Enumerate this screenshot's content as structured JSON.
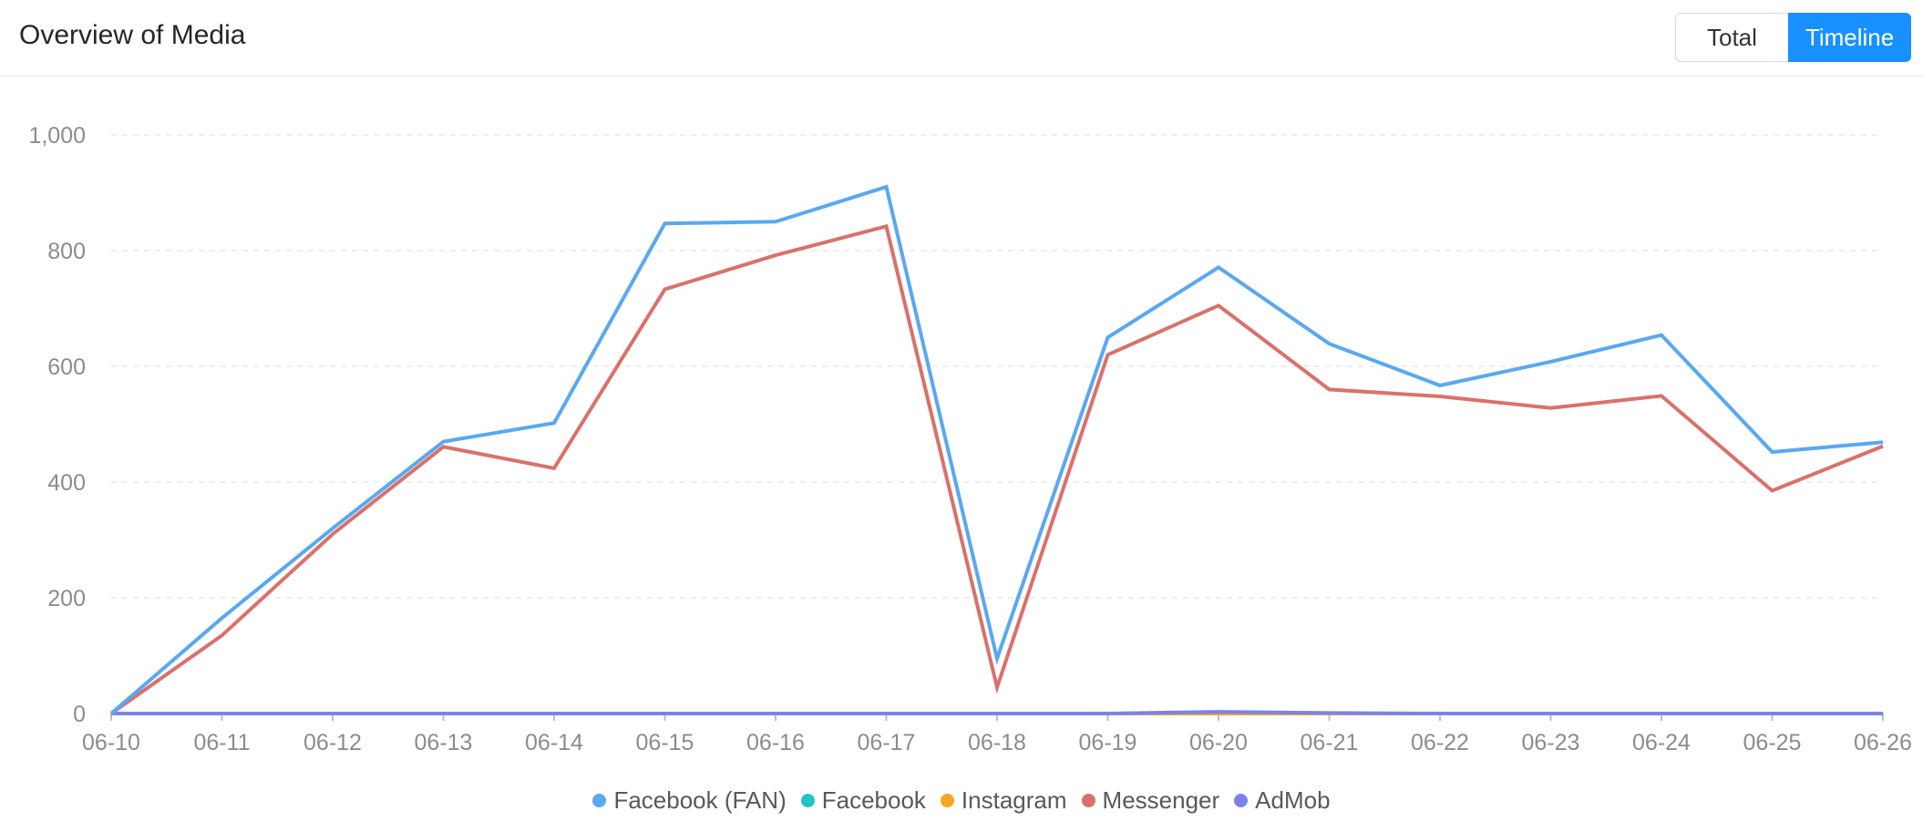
{
  "header": {
    "title": "Overview of Media",
    "toggle_total": "Total",
    "toggle_timeline": "Timeline"
  },
  "chart_data": {
    "type": "line",
    "x": [
      "06-10",
      "06-11",
      "06-12",
      "06-13",
      "06-14",
      "06-15",
      "06-16",
      "06-17",
      "06-18",
      "06-19",
      "06-20",
      "06-21",
      "06-22",
      "06-23",
      "06-24",
      "06-25",
      "06-26"
    ],
    "y_ticks": [
      "0",
      "200",
      "400",
      "600",
      "800",
      "1,000"
    ],
    "ylim": [
      0,
      1000
    ],
    "grid": true,
    "legend_position": "bottom",
    "series": [
      {
        "name": "Facebook (FAN)",
        "color": "#5aa8f0",
        "values": [
          0,
          165,
          320,
          470,
          502,
          847,
          850,
          910,
          95,
          650,
          771,
          639,
          567,
          608,
          654,
          452,
          469
        ]
      },
      {
        "name": "Facebook",
        "color": "#22c1cc",
        "values": [
          0,
          0,
          0,
          0,
          0,
          0,
          0,
          0,
          0,
          0,
          0,
          0,
          0,
          0,
          0,
          0,
          0
        ]
      },
      {
        "name": "Instagram",
        "color": "#f5a623",
        "values": [
          0,
          0,
          0,
          0,
          0,
          0,
          0,
          0,
          0,
          0,
          0,
          0,
          0,
          0,
          0,
          0,
          0
        ]
      },
      {
        "name": "Messenger",
        "color": "#d9716b",
        "values": [
          0,
          135,
          310,
          461,
          424,
          733,
          792,
          842,
          45,
          620,
          705,
          560,
          548,
          528,
          549,
          385,
          462
        ]
      },
      {
        "name": "AdMob",
        "color": "#7b83eb",
        "values": [
          0,
          0,
          0,
          0,
          0,
          0,
          0,
          0,
          0,
          0,
          3,
          1,
          0,
          0,
          0,
          0,
          0
        ]
      }
    ]
  }
}
